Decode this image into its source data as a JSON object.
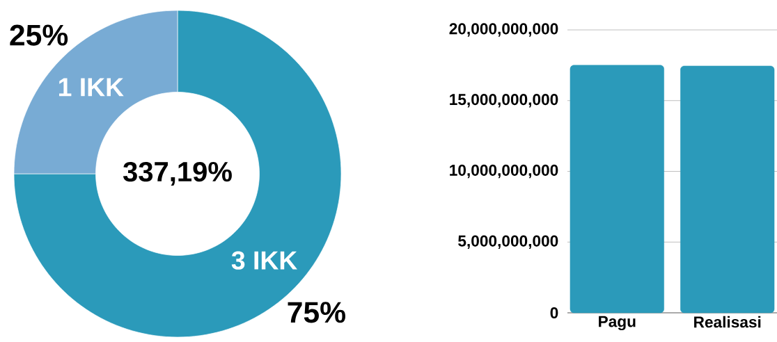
{
  "chart_data": [
    {
      "type": "donut",
      "categories": [
        "3 IKK",
        "1 IKK"
      ],
      "values": [
        75,
        25
      ],
      "colors": [
        "#2b9aba",
        "#78abd4"
      ],
      "value_labels": [
        "75%",
        "25%"
      ],
      "annotations": [
        "337,19%"
      ]
    },
    {
      "type": "bar",
      "categories": [
        "Pagu",
        "Realisasi"
      ],
      "values": [
        17500000000,
        17450000000
      ],
      "color": "#2b9aba",
      "ylim": [
        0,
        20000000000
      ],
      "yticks": [
        {
          "value": 0,
          "label": "0"
        },
        {
          "value": 5000000000,
          "label": "5,000,000,000"
        },
        {
          "value": 10000000000,
          "label": "10,000,000,000"
        },
        {
          "value": 15000000000,
          "label": "15,000,000,000"
        },
        {
          "value": 20000000000,
          "label": "20,000,000,000"
        }
      ],
      "grid": "y"
    }
  ]
}
